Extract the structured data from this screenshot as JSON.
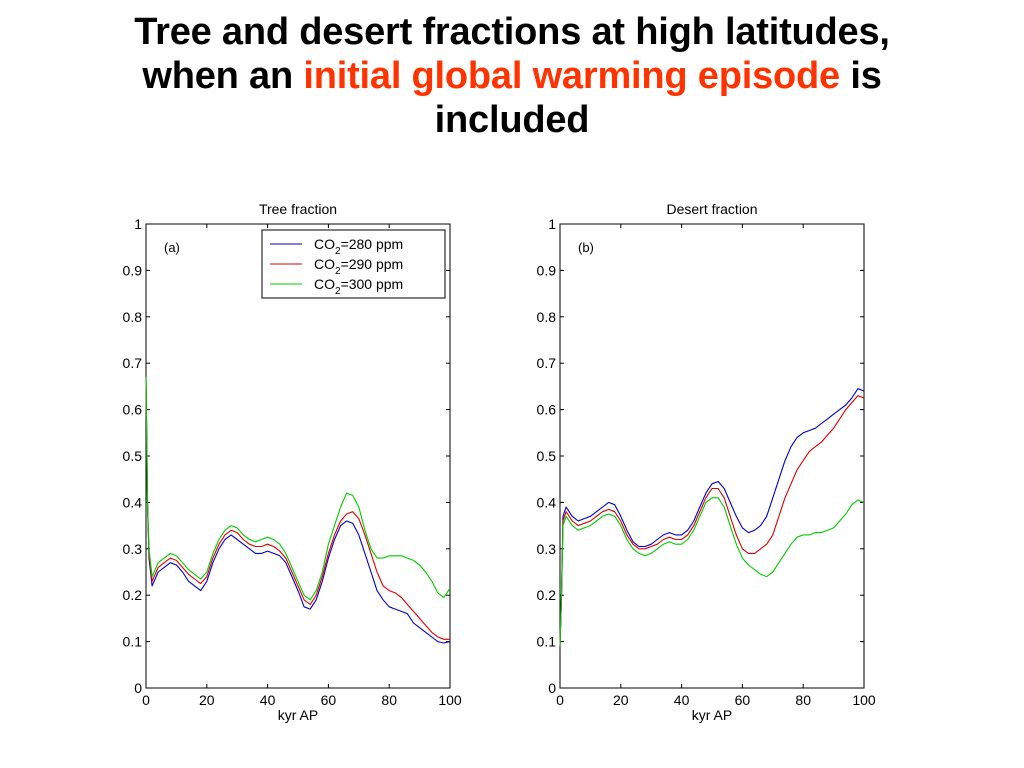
{
  "slide": {
    "title_line1": "Tree and desert fractions at high latitudes,",
    "title_line2_before": "when an ",
    "title_line2_highlight": "initial global warming episode",
    "title_line2_after": " is",
    "title_line3": "included",
    "highlight_color": "#ff3300"
  },
  "chart_data": [
    {
      "type": "line",
      "title": "Tree fraction",
      "panel_label": "(a)",
      "xlabel": "kyr AP",
      "ylabel": "",
      "xlim": [
        0,
        100
      ],
      "ylim": [
        0,
        1
      ],
      "xticks": [
        0,
        20,
        40,
        60,
        80,
        100
      ],
      "yticks": [
        0,
        0.1,
        0.2,
        0.3,
        0.4,
        0.5,
        0.6,
        0.7,
        0.8,
        0.9,
        1
      ],
      "grid": false,
      "legend": "top-right",
      "x": [
        0,
        0.5,
        1,
        2,
        4,
        6,
        8,
        10,
        12,
        14,
        16,
        18,
        20,
        22,
        24,
        26,
        28,
        30,
        32,
        34,
        36,
        38,
        40,
        42,
        44,
        46,
        48,
        50,
        52,
        54,
        56,
        58,
        60,
        62,
        64,
        66,
        68,
        70,
        72,
        74,
        76,
        78,
        80,
        82,
        84,
        86,
        88,
        90,
        92,
        94,
        96,
        98,
        100
      ],
      "series": [
        {
          "name": "CO2=280 ppm",
          "name_base": "CO",
          "name_sub": "2",
          "name_rest": "=280 ppm",
          "color": "#0000cc",
          "values": [
            0.67,
            0.4,
            0.28,
            0.22,
            0.25,
            0.26,
            0.27,
            0.265,
            0.25,
            0.23,
            0.22,
            0.21,
            0.23,
            0.27,
            0.3,
            0.32,
            0.33,
            0.32,
            0.31,
            0.3,
            0.29,
            0.29,
            0.295,
            0.29,
            0.285,
            0.27,
            0.24,
            0.21,
            0.175,
            0.17,
            0.19,
            0.23,
            0.28,
            0.32,
            0.35,
            0.36,
            0.355,
            0.33,
            0.29,
            0.25,
            0.21,
            0.19,
            0.175,
            0.17,
            0.165,
            0.16,
            0.14,
            0.13,
            0.12,
            0.11,
            0.1,
            0.097,
            0.1
          ]
        },
        {
          "name": "CO2=290 ppm",
          "name_base": "CO",
          "name_sub": "2",
          "name_rest": "=290 ppm",
          "color": "#dd0000",
          "values": [
            0.67,
            0.4,
            0.29,
            0.23,
            0.26,
            0.27,
            0.28,
            0.275,
            0.26,
            0.245,
            0.235,
            0.225,
            0.24,
            0.28,
            0.31,
            0.33,
            0.34,
            0.335,
            0.32,
            0.31,
            0.305,
            0.305,
            0.31,
            0.305,
            0.295,
            0.28,
            0.25,
            0.22,
            0.19,
            0.18,
            0.2,
            0.24,
            0.29,
            0.33,
            0.36,
            0.375,
            0.38,
            0.365,
            0.33,
            0.29,
            0.25,
            0.22,
            0.21,
            0.205,
            0.195,
            0.18,
            0.165,
            0.15,
            0.135,
            0.12,
            0.11,
            0.105,
            0.105
          ]
        },
        {
          "name": "CO2=300 ppm",
          "name_base": "CO",
          "name_sub": "2",
          "name_rest": "=300 ppm",
          "color": "#00cc00",
          "values": [
            0.67,
            0.4,
            0.3,
            0.24,
            0.27,
            0.28,
            0.29,
            0.285,
            0.27,
            0.255,
            0.245,
            0.235,
            0.25,
            0.29,
            0.32,
            0.34,
            0.35,
            0.345,
            0.33,
            0.32,
            0.315,
            0.32,
            0.325,
            0.32,
            0.31,
            0.29,
            0.26,
            0.23,
            0.2,
            0.19,
            0.21,
            0.25,
            0.31,
            0.35,
            0.39,
            0.42,
            0.415,
            0.39,
            0.34,
            0.3,
            0.28,
            0.28,
            0.285,
            0.285,
            0.285,
            0.28,
            0.275,
            0.265,
            0.25,
            0.23,
            0.205,
            0.195,
            0.215
          ]
        }
      ]
    },
    {
      "type": "line",
      "title": "Desert fraction",
      "panel_label": "(b)",
      "xlabel": "kyr AP",
      "ylabel": "",
      "xlim": [
        0,
        100
      ],
      "ylim": [
        0,
        1
      ],
      "xticks": [
        0,
        20,
        40,
        60,
        80,
        100
      ],
      "yticks": [
        0,
        0.1,
        0.2,
        0.3,
        0.4,
        0.5,
        0.6,
        0.7,
        0.8,
        0.9,
        1
      ],
      "grid": false,
      "legend": "none",
      "x": [
        0,
        0.5,
        1,
        2,
        4,
        6,
        8,
        10,
        12,
        14,
        16,
        18,
        20,
        22,
        24,
        26,
        28,
        30,
        32,
        34,
        36,
        38,
        40,
        42,
        44,
        46,
        48,
        50,
        52,
        54,
        56,
        58,
        60,
        62,
        64,
        66,
        68,
        70,
        72,
        74,
        76,
        78,
        80,
        82,
        84,
        86,
        88,
        90,
        92,
        94,
        96,
        98,
        100
      ],
      "series": [
        {
          "name": "CO2=280 ppm",
          "color": "#0000cc",
          "values": [
            0.09,
            0.2,
            0.37,
            0.39,
            0.37,
            0.36,
            0.365,
            0.37,
            0.38,
            0.39,
            0.4,
            0.395,
            0.37,
            0.34,
            0.315,
            0.305,
            0.305,
            0.31,
            0.32,
            0.33,
            0.335,
            0.33,
            0.33,
            0.34,
            0.36,
            0.39,
            0.42,
            0.44,
            0.445,
            0.43,
            0.4,
            0.37,
            0.345,
            0.335,
            0.34,
            0.35,
            0.37,
            0.41,
            0.45,
            0.49,
            0.52,
            0.54,
            0.55,
            0.555,
            0.56,
            0.57,
            0.58,
            0.59,
            0.6,
            0.61,
            0.625,
            0.645,
            0.64
          ]
        },
        {
          "name": "CO2=290 ppm",
          "color": "#dd0000",
          "values": [
            0.09,
            0.2,
            0.36,
            0.38,
            0.36,
            0.35,
            0.355,
            0.36,
            0.37,
            0.38,
            0.385,
            0.38,
            0.36,
            0.33,
            0.31,
            0.3,
            0.3,
            0.305,
            0.31,
            0.32,
            0.325,
            0.32,
            0.32,
            0.33,
            0.35,
            0.38,
            0.41,
            0.43,
            0.43,
            0.41,
            0.37,
            0.33,
            0.3,
            0.29,
            0.29,
            0.3,
            0.31,
            0.33,
            0.37,
            0.41,
            0.44,
            0.47,
            0.49,
            0.51,
            0.52,
            0.53,
            0.545,
            0.56,
            0.58,
            0.6,
            0.615,
            0.63,
            0.625
          ]
        },
        {
          "name": "CO2=300 ppm",
          "color": "#00cc00",
          "values": [
            0.09,
            0.2,
            0.35,
            0.37,
            0.35,
            0.34,
            0.345,
            0.35,
            0.36,
            0.37,
            0.375,
            0.37,
            0.35,
            0.32,
            0.3,
            0.29,
            0.285,
            0.29,
            0.3,
            0.31,
            0.315,
            0.31,
            0.31,
            0.32,
            0.34,
            0.37,
            0.4,
            0.41,
            0.41,
            0.39,
            0.35,
            0.31,
            0.28,
            0.265,
            0.255,
            0.245,
            0.24,
            0.25,
            0.27,
            0.29,
            0.31,
            0.325,
            0.33,
            0.33,
            0.335,
            0.335,
            0.34,
            0.345,
            0.36,
            0.375,
            0.395,
            0.405,
            0.4
          ]
        }
      ]
    }
  ]
}
